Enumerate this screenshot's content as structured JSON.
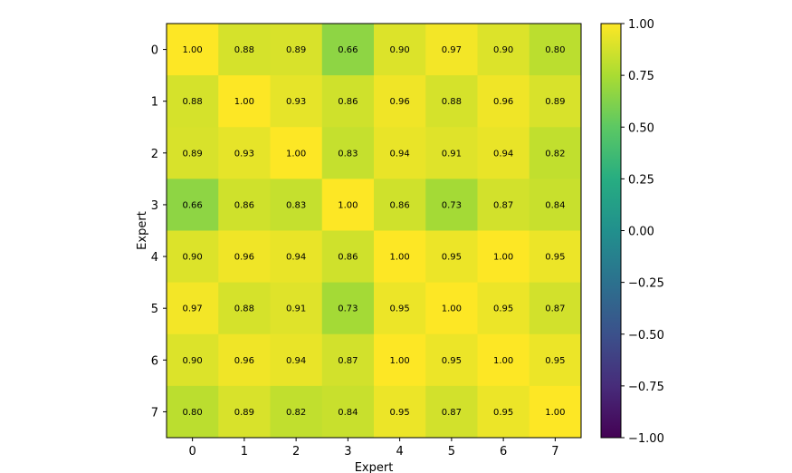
{
  "chart_data": {
    "type": "heatmap",
    "title": "",
    "xlabel": "Expert",
    "ylabel": "Expert",
    "x_categories": [
      "0",
      "1",
      "2",
      "3",
      "4",
      "5",
      "6",
      "7"
    ],
    "y_categories": [
      "0",
      "1",
      "2",
      "3",
      "4",
      "5",
      "6",
      "7"
    ],
    "values": [
      [
        1.0,
        0.88,
        0.89,
        0.66,
        0.9,
        0.97,
        0.9,
        0.8
      ],
      [
        0.88,
        1.0,
        0.93,
        0.86,
        0.96,
        0.88,
        0.96,
        0.89
      ],
      [
        0.89,
        0.93,
        1.0,
        0.83,
        0.94,
        0.91,
        0.94,
        0.82
      ],
      [
        0.66,
        0.86,
        0.83,
        1.0,
        0.86,
        0.73,
        0.87,
        0.84
      ],
      [
        0.9,
        0.96,
        0.94,
        0.86,
        1.0,
        0.95,
        1.0,
        0.95
      ],
      [
        0.97,
        0.88,
        0.91,
        0.73,
        0.95,
        1.0,
        0.95,
        0.87
      ],
      [
        0.9,
        0.96,
        0.94,
        0.87,
        1.0,
        0.95,
        1.0,
        0.95
      ],
      [
        0.8,
        0.89,
        0.82,
        0.84,
        0.95,
        0.87,
        0.95,
        1.0
      ]
    ],
    "value_format": "0.00",
    "colormap": "viridis",
    "vmin": -1.0,
    "vmax": 1.0,
    "colorbar": {
      "ticks": [
        1.0,
        0.75,
        0.5,
        0.25,
        0.0,
        -0.25,
        -0.5,
        -0.75,
        -1.0
      ],
      "tick_labels": [
        "1.00",
        "0.75",
        "0.50",
        "0.25",
        "0.00",
        "−0.25",
        "−0.50",
        "−0.75",
        "−1.00"
      ],
      "placement": "right"
    },
    "grid": false
  }
}
